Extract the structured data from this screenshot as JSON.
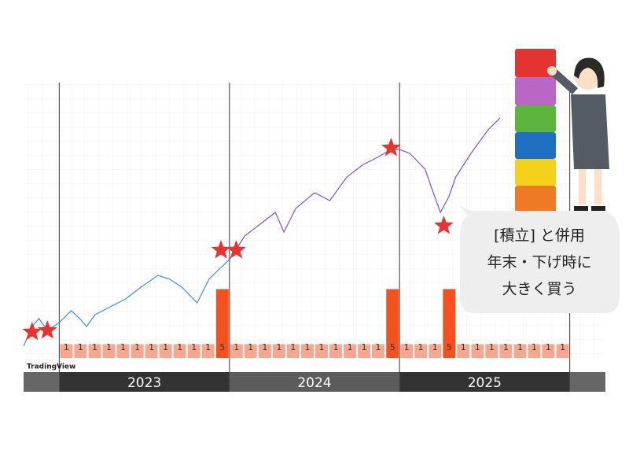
{
  "chart_data": {
    "type": "line",
    "xlim": [
      2022.79,
      2026.21
    ],
    "xticks": [
      2023,
      2024,
      2025,
      2026
    ],
    "year_bands": [
      "2023",
      "2024",
      "2025"
    ],
    "ylim": [
      3400,
      6900
    ],
    "y2lim": [
      0,
      20
    ],
    "grid": true,
    "series": [
      {
        "color": "#3b8fd9",
        "x": [
          2022.79,
          2022.84,
          2022.88,
          2022.93,
          2023.0,
          2023.07,
          2023.12,
          2023.16,
          2023.21,
          2023.3,
          2023.39,
          2023.48,
          2023.58,
          2023.65,
          2023.72,
          2023.81,
          2023.88,
          2023.95,
          2024.0
        ],
        "values": [
          3550,
          3800,
          3900,
          3750,
          3850,
          4000,
          3900,
          3800,
          3950,
          4050,
          4150,
          4300,
          4450,
          4400,
          4300,
          4100,
          4400,
          4550,
          4650
        ]
      },
      {
        "color": "#7b52d6",
        "x": [
          2024.0,
          2024.09,
          2024.18,
          2024.27,
          2024.32,
          2024.39,
          2024.5,
          2024.59,
          2024.69,
          2024.78,
          2024.87,
          2024.95,
          2025.0,
          2025.06,
          2025.15,
          2025.19,
          2025.24,
          2025.29,
          2025.33,
          2025.42,
          2025.52,
          2025.59
        ],
        "values": [
          4650,
          4950,
          5100,
          5250,
          5000,
          5300,
          5500,
          5400,
          5700,
          5850,
          5950,
          6050,
          6050,
          6000,
          5800,
          5550,
          5250,
          5450,
          5700,
          6000,
          6300,
          6450
        ]
      }
    ],
    "markers": {
      "color": "#e8332f",
      "x": [
        2022.84,
        2022.93,
        2023.95,
        2024.04,
        2024.95,
        2025.26
      ],
      "values": [
        3730,
        3750,
        4770,
        4770,
        6070,
        5080
      ]
    },
    "bars": {
      "axis": "y2",
      "x": [
        2023.0,
        2023.083,
        2023.167,
        2023.25,
        2023.333,
        2023.417,
        2023.5,
        2023.583,
        2023.667,
        2023.75,
        2023.833,
        2023.917,
        2024.0,
        2024.083,
        2024.167,
        2024.25,
        2024.333,
        2024.417,
        2024.5,
        2024.583,
        2024.667,
        2024.75,
        2024.833,
        2024.917,
        2025.0,
        2025.083,
        2025.167,
        2025.25,
        2025.333,
        2025.417,
        2025.5,
        2025.583,
        2025.667,
        2025.75,
        2025.833,
        2025.917
      ],
      "values": [
        1,
        1,
        1,
        1,
        1,
        1,
        1,
        1,
        1,
        1,
        1,
        5,
        1,
        1,
        1,
        1,
        1,
        1,
        1,
        1,
        1,
        1,
        1,
        5,
        1,
        1,
        1,
        5,
        1,
        1,
        1,
        1,
        1,
        1,
        1,
        1
      ],
      "colors": [
        "#f7a78f",
        "#f7a78f",
        "#f7a78f",
        "#f7a78f",
        "#f7a78f",
        "#f7a78f",
        "#f7a78f",
        "#f7a78f",
        "#f7a78f",
        "#f7a78f",
        "#f7a78f",
        "#f4511e",
        "#f7a78f",
        "#f7a78f",
        "#f7a78f",
        "#f7a78f",
        "#f7a78f",
        "#f7a78f",
        "#f7a78f",
        "#f7a78f",
        "#f7a78f",
        "#f7a78f",
        "#f7a78f",
        "#f4511e",
        "#f7a78f",
        "#f7a78f",
        "#f7a78f",
        "#f4511e",
        "#f7a78f",
        "#f7a78f",
        "#f7a78f",
        "#f7a78f",
        "#f7a78f",
        "#f7a78f",
        "#f7a78f",
        "#f7a78f"
      ]
    },
    "watermark": "TradingView",
    "callout": [
      "[積立] と併用",
      "年末・下げ時に",
      "大きく買う"
    ]
  }
}
